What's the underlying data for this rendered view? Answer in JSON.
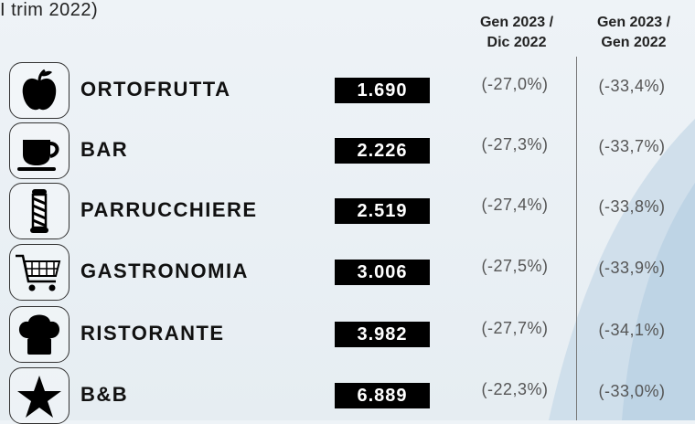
{
  "header": {
    "title": "I trim 2022)"
  },
  "columns": [
    [
      "Gen 2023 /",
      "Dic 2022"
    ],
    [
      "Gen 2023 /",
      "Gen 2022"
    ]
  ],
  "rows": [
    {
      "name": "ORTOFRUTTA",
      "value": "1.690",
      "changes": [
        "(-27,0%)",
        "(-33,4%)"
      ]
    },
    {
      "name": "BAR",
      "value": "2.226",
      "changes": [
        "(-27,3%)",
        "(-33,7%)"
      ]
    },
    {
      "name": "PARRUCCHIERE",
      "value": "2.519",
      "changes": [
        "(-27,4%)",
        "(-33,8%)"
      ]
    },
    {
      "name": "GASTRONOMIA",
      "value": "3.006",
      "changes": [
        "(-27,5%)",
        "(-33,9%)"
      ]
    },
    {
      "name": "RISTORANTE",
      "value": "3.982",
      "changes": [
        "(-27,7%)",
        "(-34,1%)"
      ]
    },
    {
      "name": "B&B",
      "value": "6.889",
      "changes": [
        "(-22,3%)",
        "(-33,0%)"
      ]
    }
  ]
}
